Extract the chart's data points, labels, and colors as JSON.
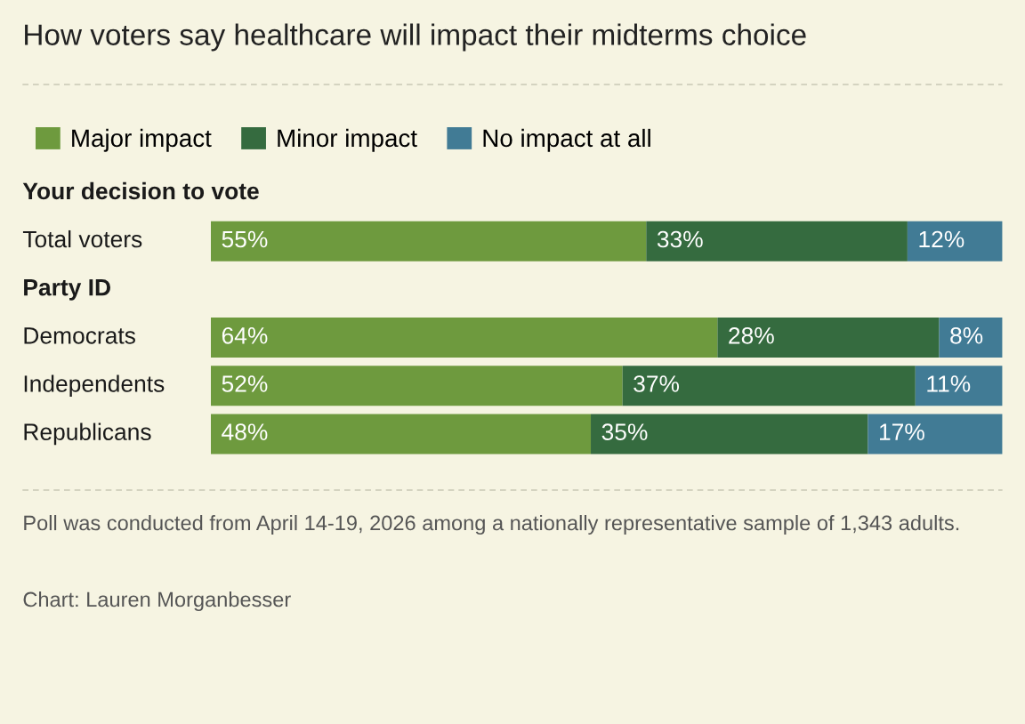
{
  "chart_data": {
    "type": "bar",
    "orientation": "horizontal",
    "stacked": true,
    "title": "How voters say healthcare will impact their midterms choice",
    "categories": [
      "Your decision to vote",
      "Total voters",
      "Party ID",
      "Democrats",
      "Independents",
      "Republicans"
    ],
    "series": [
      {
        "name": "Major impact",
        "color": "#6e9a3e",
        "values": [
          null,
          55,
          null,
          64,
          52,
          48
        ],
        "value_labels": [
          null,
          "55%",
          null,
          "64%",
          "52%",
          "48%"
        ]
      },
      {
        "name": "Minor impact",
        "color": "#356b3f",
        "values": [
          null,
          33,
          null,
          28,
          37,
          35
        ],
        "value_labels": [
          null,
          "33%",
          null,
          "28%",
          "37%",
          "35%"
        ]
      },
      {
        "name": "No impact at all",
        "color": "#417b95",
        "values": [
          null,
          12,
          null,
          8,
          11,
          17
        ],
        "value_labels": [
          null,
          "12%",
          null,
          "8%",
          "11%",
          "17%"
        ]
      }
    ],
    "legend": "top left",
    "annotations": [
      "Poll was conducted from April 14-19, 2026 among a nationally representative sample of 1,343 adults.",
      "Chart: Lauren Morganbesser"
    ]
  }
}
